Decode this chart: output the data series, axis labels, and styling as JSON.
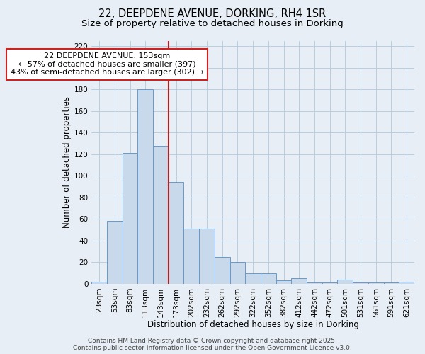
{
  "title_line1": "22, DEEPDENE AVENUE, DORKING, RH4 1SR",
  "title_line2": "Size of property relative to detached houses in Dorking",
  "xlabel": "Distribution of detached houses by size in Dorking",
  "ylabel": "Number of detached properties",
  "bin_labels": [
    "23sqm",
    "53sqm",
    "83sqm",
    "113sqm",
    "143sqm",
    "173sqm",
    "202sqm",
    "232sqm",
    "262sqm",
    "292sqm",
    "322sqm",
    "352sqm",
    "382sqm",
    "412sqm",
    "442sqm",
    "472sqm",
    "501sqm",
    "531sqm",
    "561sqm",
    "591sqm",
    "621sqm"
  ],
  "bar_values": [
    2,
    58,
    121,
    180,
    128,
    94,
    51,
    51,
    25,
    20,
    10,
    10,
    3,
    5,
    1,
    1,
    4,
    1,
    1,
    1,
    2
  ],
  "bar_color": "#c9d9ec",
  "bar_edge_color": "#6699cc",
  "bar_edge_width": 0.7,
  "grid_color": "#b8cfe0",
  "background_color": "#e8eef5",
  "axes_background": "#e8eef5",
  "annotation_line1": "22 DEEPDENE AVENUE: 153sqm",
  "annotation_line2": "← 57% of detached houses are smaller (397)",
  "annotation_line3": "43% of semi-detached houses are larger (302) →",
  "red_line_x": 4.5,
  "red_line_color": "#aa2222",
  "annotation_box_color": "#ffffff",
  "annotation_box_edge": "#cc2222",
  "ylim": [
    0,
    225
  ],
  "yticks": [
    0,
    20,
    40,
    60,
    80,
    100,
    120,
    140,
    160,
    180,
    200,
    220
  ],
  "footer_line1": "Contains HM Land Registry data © Crown copyright and database right 2025.",
  "footer_line2": "Contains public sector information licensed under the Open Government Licence v3.0.",
  "title_fontsize": 10.5,
  "subtitle_fontsize": 9.5,
  "tick_fontsize": 7.5,
  "xlabel_fontsize": 8.5,
  "ylabel_fontsize": 8.5,
  "footer_fontsize": 6.5,
  "annotation_fontsize": 8.0
}
